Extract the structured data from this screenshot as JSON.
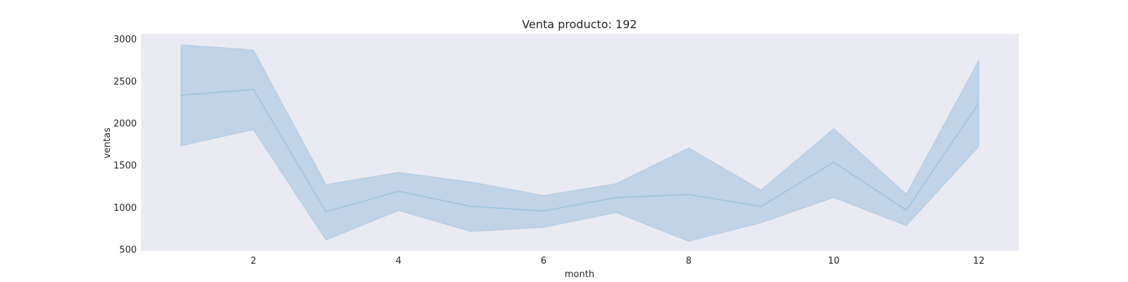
{
  "chart_data": {
    "type": "line",
    "title": "Venta producto: 192",
    "xlabel": "month",
    "ylabel": "ventas",
    "x": [
      1,
      2,
      3,
      4,
      5,
      6,
      7,
      8,
      9,
      10,
      11,
      12
    ],
    "series": [
      {
        "values": [
          2330,
          2400,
          945,
          1190,
          1010,
          955,
          1115,
          1150,
          1010,
          1535,
          965,
          2240
        ],
        "ci_lower": [
          1730,
          1920,
          610,
          960,
          710,
          760,
          935,
          595,
          815,
          1115,
          780,
          1720
        ],
        "ci_upper": [
          2930,
          2870,
          1270,
          1415,
          1300,
          1140,
          1280,
          1705,
          1205,
          1935,
          1155,
          2745
        ]
      }
    ],
    "xticks": [
      2,
      4,
      6,
      8,
      10,
      12
    ],
    "yticks": [
      500,
      1000,
      1500,
      2000,
      2500,
      3000
    ],
    "xlim": [
      0.45,
      12.55
    ],
    "ylim": [
      480,
      3060
    ],
    "grid": false,
    "colors": {
      "plot_bg": "#eaeaf2",
      "line": "#9ec3de",
      "band": "#b7cde2"
    }
  }
}
